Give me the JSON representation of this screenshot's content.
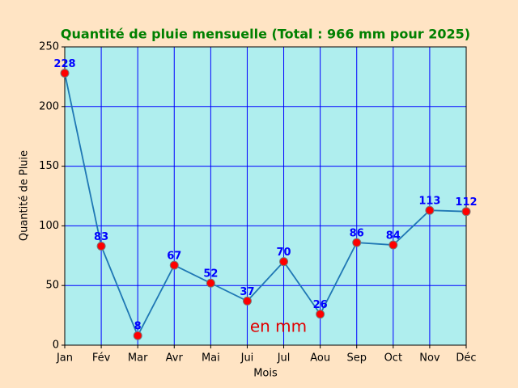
{
  "chart_data": {
    "type": "line",
    "title": "Quantité de pluie mensuelle (Total : 966 mm pour 2025)",
    "x_label": "Mois",
    "y_label": "Quantité de Pluie",
    "categories": [
      "Jan",
      "Fév",
      "Mar",
      "Avr",
      "Mai",
      "Jui",
      "Jul",
      "Aou",
      "Sep",
      "Oct",
      "Nov",
      "Déc"
    ],
    "values": [
      228,
      83,
      8,
      67,
      52,
      37,
      70,
      26,
      86,
      84,
      113,
      112
    ],
    "color": "#1f77b4",
    "marker_color": "#ff0000",
    "ylim": [
      0,
      250
    ],
    "yticks": [
      0,
      50,
      100,
      150,
      200,
      250
    ],
    "grid": true,
    "annotation": "en mm"
  }
}
